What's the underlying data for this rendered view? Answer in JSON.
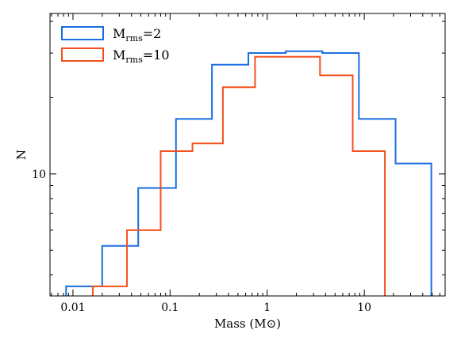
{
  "chart_data": {
    "type": "histogram",
    "title": "",
    "xlabel": "Mass (M⊙)",
    "ylabel": "N",
    "xscale": "log",
    "yscale": "log",
    "xlim": [
      0.0058,
      68
    ],
    "ylim": [
      3.3,
      43
    ],
    "x_tick_labels": [
      "0.01",
      "0.1",
      "1",
      "10"
    ],
    "y_tick_labels": [
      "10"
    ],
    "legend_position": "top-left",
    "series": [
      {
        "name": "Mrms=2",
        "label_main": "M",
        "label_sub": "rms",
        "label_tail": "=2",
        "color": "#1a6ee0",
        "edges": [
          0.0085,
          0.02,
          0.047,
          0.115,
          0.27,
          0.64,
          1.55,
          3.7,
          8.8,
          21,
          49
        ],
        "counts": [
          3.6,
          5.2,
          8.8,
          16.5,
          27,
          30,
          30.5,
          30,
          16.5,
          11
        ]
      },
      {
        "name": "Mrms=10",
        "label_main": "M",
        "label_sub": "rms",
        "label_tail": "=10",
        "color": "#f4511e",
        "edges": [
          0.016,
          0.036,
          0.08,
          0.17,
          0.35,
          0.75,
          3.5,
          7.6,
          16.3
        ],
        "counts": [
          3.6,
          6.0,
          12.3,
          13.2,
          22,
          29,
          24.5,
          12.3
        ]
      }
    ]
  }
}
